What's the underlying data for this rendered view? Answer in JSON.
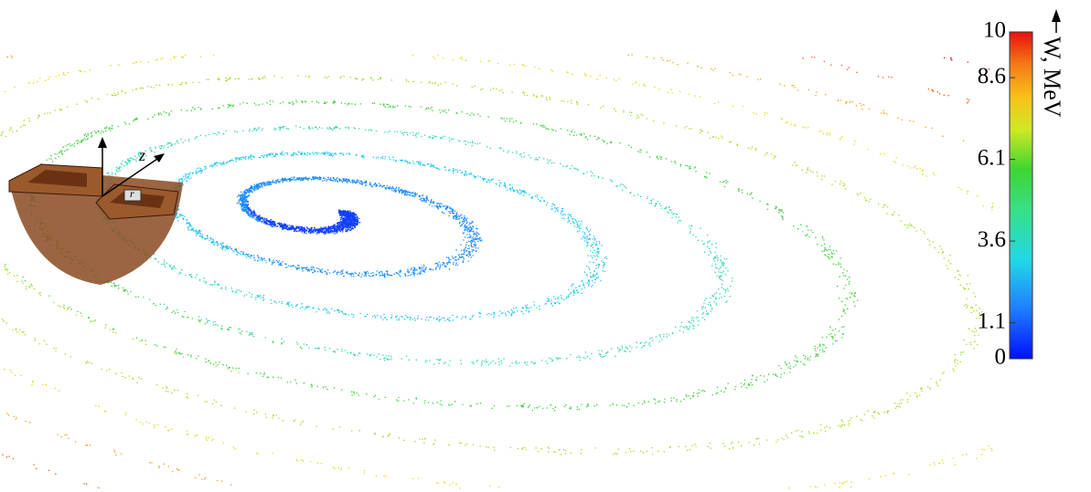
{
  "figure": {
    "axis_labels": {
      "vertical": "z",
      "radial": "r"
    },
    "colorbar": {
      "label": "W, MeV",
      "lim": [
        0,
        10
      ],
      "ticks": [
        0,
        1.1,
        3.6,
        6.1,
        8.6,
        10
      ]
    }
  }
}
